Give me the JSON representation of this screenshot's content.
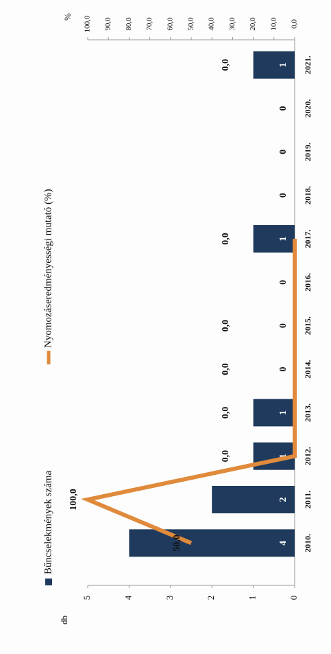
{
  "chart_data": {
    "type": "bar",
    "categories": [
      "2010.",
      "2011.",
      "2012.",
      "2013.",
      "2014.",
      "2015.",
      "2016.",
      "2017.",
      "2018.",
      "2019.",
      "2020.",
      "2021."
    ],
    "series": [
      {
        "name": "Bűncselekmények száma",
        "type": "bar",
        "color": "#1f3a5c",
        "values": [
          4,
          2,
          1,
          1,
          0,
          0,
          0,
          1,
          0,
          0,
          0,
          1
        ]
      },
      {
        "name": "Nyomozáseredményességi mutató (%)",
        "type": "line",
        "axis": "y2",
        "color": "#e08a3c",
        "values": [
          50,
          100,
          0,
          0,
          0,
          0,
          0,
          0,
          null,
          null,
          null,
          0
        ],
        "value_labels": [
          "50,0",
          "100,0",
          "0,0",
          "0,0",
          "0,0",
          "0,0",
          null,
          "0,0",
          null,
          null,
          null,
          "0,0"
        ]
      }
    ],
    "ylabel": "db",
    "y2label": "%",
    "ylim": [
      0,
      5
    ],
    "yticks": [
      0,
      1,
      2,
      3,
      4,
      5
    ],
    "y2lim": [
      0,
      100
    ],
    "y2ticks": [
      {
        "value": 0,
        "label": "0,0"
      },
      {
        "value": 10,
        "label": "10,0"
      },
      {
        "value": 20,
        "label": "20,0"
      },
      {
        "value": 30,
        "label": "30,0"
      },
      {
        "value": 40,
        "label": "40,0"
      },
      {
        "value": 50,
        "label": "50,0"
      },
      {
        "value": 60,
        "label": "60,0"
      },
      {
        "value": 70,
        "label": "70,0"
      },
      {
        "value": 80,
        "label": "80,0"
      },
      {
        "value": 90,
        "label": "90,0"
      },
      {
        "value": 100,
        "label": "100,0"
      }
    ],
    "legend": "top"
  }
}
